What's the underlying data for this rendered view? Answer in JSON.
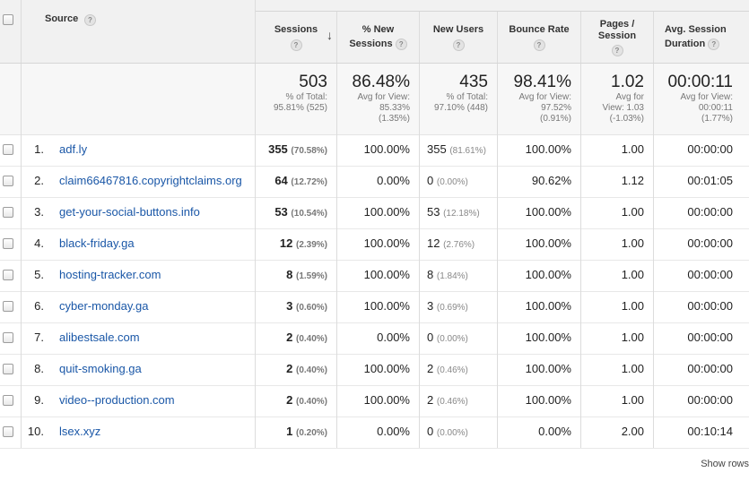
{
  "header": {
    "source": "Source",
    "sessions": "Sessions",
    "new_sessions": [
      "% New",
      "Sessions"
    ],
    "new_users": "New Users",
    "bounce_rate": "Bounce Rate",
    "pages_session": [
      "Pages /",
      "Session"
    ],
    "avg_duration": [
      "Avg. Session",
      "Duration"
    ],
    "help_glyph": "?",
    "sort_arrow": "↓"
  },
  "summary": {
    "sessions": {
      "value": "503",
      "l1": "% of Total:",
      "l2": "95.81% (525)"
    },
    "new_sessions": {
      "value": "86.48%",
      "l1": "Avg for View:",
      "l2": "85.33%",
      "l3": "(1.35%)"
    },
    "new_users": {
      "value": "435",
      "l1": "% of Total:",
      "l2": "97.10% (448)"
    },
    "bounce_rate": {
      "value": "98.41%",
      "l1": "Avg for View:",
      "l2": "97.52%",
      "l3": "(0.91%)"
    },
    "pages_session": {
      "value": "1.02",
      "l1": "Avg for",
      "l2": "View: 1.03",
      "l3": "(-1.03%)"
    },
    "avg_duration": {
      "value": "00:00:11",
      "l1": "Avg for View:",
      "l2": "00:00:11",
      "l3": "(1.77%)"
    }
  },
  "rows": [
    {
      "idx": "1.",
      "source": "adf.ly",
      "sessions": "355",
      "sessions_pct": "(70.58%)",
      "new_sessions": "100.00%",
      "new_users": "355",
      "new_users_pct": "(81.61%)",
      "bounce": "100.00%",
      "pages": "1.00",
      "duration": "00:00:00"
    },
    {
      "idx": "2.",
      "source": "claim66467816.copyrightclaims.org",
      "sessions": "64",
      "sessions_pct": "(12.72%)",
      "new_sessions": "0.00%",
      "new_users": "0",
      "new_users_pct": "(0.00%)",
      "bounce": "90.62%",
      "pages": "1.12",
      "duration": "00:01:05"
    },
    {
      "idx": "3.",
      "source": "get-your-social-buttons.info",
      "sessions": "53",
      "sessions_pct": "(10.54%)",
      "new_sessions": "100.00%",
      "new_users": "53",
      "new_users_pct": "(12.18%)",
      "bounce": "100.00%",
      "pages": "1.00",
      "duration": "00:00:00"
    },
    {
      "idx": "4.",
      "source": "black-friday.ga",
      "sessions": "12",
      "sessions_pct": "(2.39%)",
      "new_sessions": "100.00%",
      "new_users": "12",
      "new_users_pct": "(2.76%)",
      "bounce": "100.00%",
      "pages": "1.00",
      "duration": "00:00:00"
    },
    {
      "idx": "5.",
      "source": "hosting-tracker.com",
      "sessions": "8",
      "sessions_pct": "(1.59%)",
      "new_sessions": "100.00%",
      "new_users": "8",
      "new_users_pct": "(1.84%)",
      "bounce": "100.00%",
      "pages": "1.00",
      "duration": "00:00:00"
    },
    {
      "idx": "6.",
      "source": "cyber-monday.ga",
      "sessions": "3",
      "sessions_pct": "(0.60%)",
      "new_sessions": "100.00%",
      "new_users": "3",
      "new_users_pct": "(0.69%)",
      "bounce": "100.00%",
      "pages": "1.00",
      "duration": "00:00:00"
    },
    {
      "idx": "7.",
      "source": "alibestsale.com",
      "sessions": "2",
      "sessions_pct": "(0.40%)",
      "new_sessions": "0.00%",
      "new_users": "0",
      "new_users_pct": "(0.00%)",
      "bounce": "100.00%",
      "pages": "1.00",
      "duration": "00:00:00"
    },
    {
      "idx": "8.",
      "source": "quit-smoking.ga",
      "sessions": "2",
      "sessions_pct": "(0.40%)",
      "new_sessions": "100.00%",
      "new_users": "2",
      "new_users_pct": "(0.46%)",
      "bounce": "100.00%",
      "pages": "1.00",
      "duration": "00:00:00"
    },
    {
      "idx": "9.",
      "source": "video--production.com",
      "sessions": "2",
      "sessions_pct": "(0.40%)",
      "new_sessions": "100.00%",
      "new_users": "2",
      "new_users_pct": "(0.46%)",
      "bounce": "100.00%",
      "pages": "1.00",
      "duration": "00:00:00"
    },
    {
      "idx": "10.",
      "source": "lsex.xyz",
      "sessions": "1",
      "sessions_pct": "(0.20%)",
      "new_sessions": "0.00%",
      "new_users": "0",
      "new_users_pct": "(0.00%)",
      "bounce": "0.00%",
      "pages": "2.00",
      "duration": "00:10:14"
    }
  ],
  "footer": {
    "show_rows": "Show rows"
  }
}
